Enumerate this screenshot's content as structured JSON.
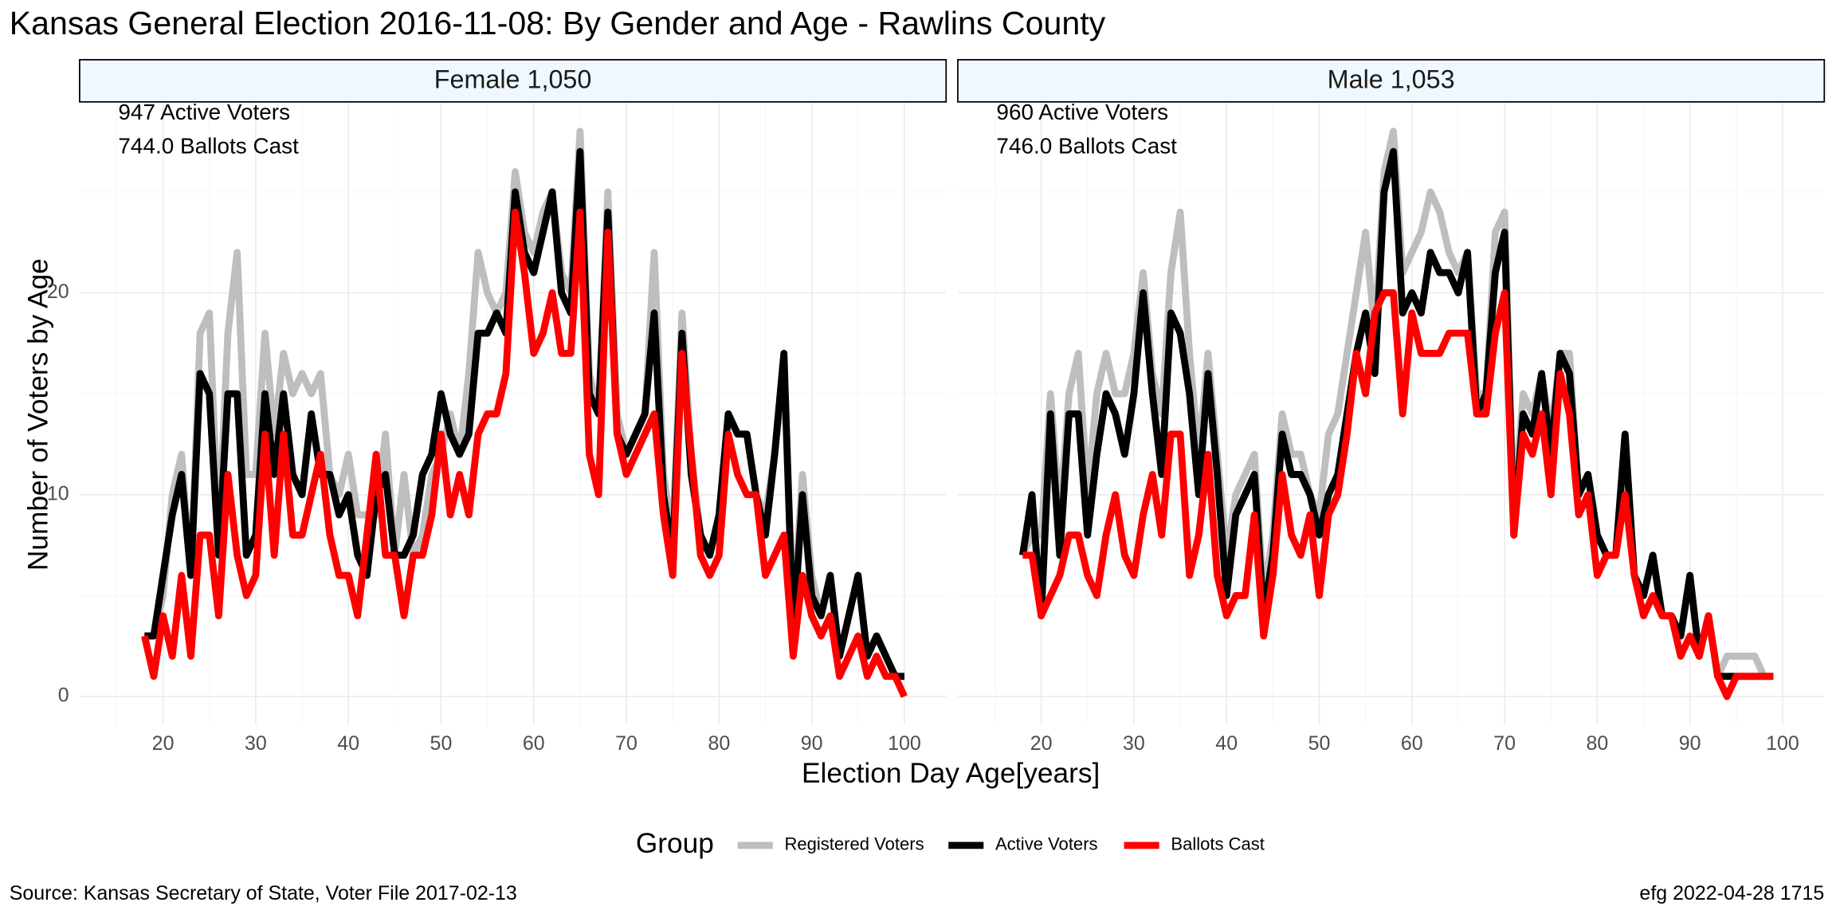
{
  "title": "Kansas General Election 2016-11-08:  By Gender and Age - Rawlins County",
  "x_label": "Election Day Age[years]",
  "y_label": "Number of Voters by Age",
  "legend_title": "Group",
  "source": "Source:  Kansas Secretary of State, Voter File  2017-02-13",
  "credit": "efg 2022-04-28 1715",
  "chart_data": [
    {
      "type": "line",
      "title": "Female 1,050",
      "annotations": [
        "947 Active Voters",
        "744.0 Ballots Cast"
      ],
      "x": [
        18,
        19,
        20,
        21,
        22,
        23,
        24,
        25,
        26,
        27,
        28,
        29,
        30,
        31,
        32,
        33,
        34,
        35,
        36,
        37,
        38,
        39,
        40,
        41,
        42,
        43,
        44,
        45,
        46,
        47,
        48,
        49,
        50,
        51,
        52,
        53,
        54,
        55,
        56,
        57,
        58,
        59,
        60,
        61,
        62,
        63,
        64,
        65,
        66,
        67,
        68,
        69,
        70,
        71,
        72,
        73,
        74,
        75,
        76,
        77,
        78,
        79,
        80,
        81,
        82,
        83,
        84,
        85,
        86,
        87,
        88,
        89,
        90,
        91,
        92,
        93,
        94,
        95,
        96,
        97,
        98,
        99,
        100
      ],
      "series": [
        {
          "name": "Registered Voters",
          "color": "#bebebe",
          "values": [
            3,
            3,
            5,
            10,
            12,
            6,
            18,
            19,
            8,
            18,
            22,
            11,
            11,
            18,
            13,
            17,
            15,
            16,
            15,
            16,
            11,
            10,
            12,
            9,
            9,
            9,
            13,
            7,
            11,
            7,
            8,
            11,
            12,
            14,
            12,
            16,
            22,
            20,
            19,
            20,
            26,
            23,
            22,
            24,
            25,
            21,
            20,
            28,
            16,
            14,
            25,
            14,
            12,
            13,
            14,
            22,
            11,
            8,
            19,
            12,
            8,
            7,
            9,
            14,
            13,
            13,
            10,
            9,
            12,
            16,
            4,
            11,
            6,
            4,
            6,
            2,
            4,
            6,
            2,
            3,
            2,
            1,
            1
          ]
        },
        {
          "name": "Active Voters",
          "color": "#000000",
          "values": [
            3,
            3,
            6,
            9,
            11,
            6,
            16,
            15,
            7,
            15,
            15,
            7,
            8,
            15,
            11,
            15,
            11,
            10,
            14,
            11,
            11,
            9,
            10,
            7,
            6,
            10,
            11,
            7,
            7,
            8,
            11,
            12,
            15,
            13,
            12,
            13,
            18,
            18,
            19,
            18,
            25,
            22,
            21,
            23,
            25,
            20,
            19,
            27,
            15,
            14,
            24,
            13,
            12,
            13,
            14,
            19,
            10,
            7,
            18,
            11,
            8,
            7,
            9,
            14,
            13,
            13,
            10,
            8,
            12,
            17,
            3,
            10,
            5,
            4,
            6,
            2,
            4,
            6,
            2,
            3,
            2,
            1,
            1
          ]
        },
        {
          "name": "Ballots Cast",
          "color": "#ff0000",
          "values": [
            3,
            1,
            4,
            2,
            6,
            2,
            8,
            8,
            4,
            11,
            7,
            5,
            6,
            13,
            7,
            13,
            8,
            8,
            10,
            12,
            8,
            6,
            6,
            4,
            8,
            12,
            7,
            7,
            4,
            7,
            7,
            9,
            13,
            9,
            11,
            9,
            13,
            14,
            14,
            16,
            24,
            21,
            17,
            18,
            20,
            17,
            17,
            24,
            12,
            10,
            23,
            13,
            11,
            12,
            13,
            14,
            9,
            6,
            17,
            12,
            7,
            6,
            7,
            13,
            11,
            10,
            10,
            6,
            7,
            8,
            2,
            6,
            4,
            3,
            4,
            1,
            2,
            3,
            1,
            2,
            1,
            1,
            0
          ]
        }
      ],
      "xlim": [
        11,
        104.5
      ],
      "ylim": [
        -1.4,
        29.4
      ],
      "xticks": [
        20,
        30,
        40,
        50,
        60,
        70,
        80,
        90,
        100
      ],
      "yticks": [
        0,
        10,
        20
      ],
      "grid": true
    },
    {
      "type": "line",
      "title": "Male 1,053",
      "annotations": [
        "960 Active Voters",
        "746.0 Ballots Cast"
      ],
      "x": [
        18,
        19,
        20,
        21,
        22,
        23,
        24,
        25,
        26,
        27,
        28,
        29,
        30,
        31,
        32,
        33,
        34,
        35,
        36,
        37,
        38,
        39,
        40,
        41,
        42,
        43,
        44,
        45,
        46,
        47,
        48,
        49,
        50,
        51,
        52,
        53,
        54,
        55,
        56,
        57,
        58,
        59,
        60,
        61,
        62,
        63,
        64,
        65,
        66,
        67,
        68,
        69,
        70,
        71,
        72,
        73,
        74,
        75,
        76,
        77,
        78,
        79,
        80,
        81,
        82,
        83,
        84,
        85,
        86,
        87,
        88,
        89,
        90,
        91,
        92,
        93,
        94,
        95,
        96,
        97,
        98,
        99
      ],
      "series": [
        {
          "name": "Registered Voters",
          "color": "#bebebe",
          "values": [
            7,
            8,
            8,
            15,
            9,
            15,
            17,
            10,
            15,
            17,
            15,
            15,
            17,
            21,
            16,
            14,
            21,
            24,
            17,
            12,
            17,
            12,
            7,
            10,
            11,
            12,
            5,
            8,
            14,
            12,
            12,
            10,
            9,
            13,
            14,
            17,
            20,
            23,
            18,
            26,
            28,
            21,
            22,
            23,
            25,
            24,
            22,
            21,
            22,
            15,
            15,
            23,
            24,
            9,
            15,
            14,
            16,
            13,
            17,
            17,
            10,
            11,
            8,
            7,
            7,
            13,
            6,
            5,
            7,
            4,
            4,
            3,
            6,
            2,
            4,
            1,
            2,
            2,
            2,
            2,
            1,
            1
          ]
        },
        {
          "name": "Active Voters",
          "color": "#000000",
          "values": [
            7,
            10,
            4,
            14,
            7,
            14,
            14,
            8,
            12,
            15,
            14,
            12,
            15,
            20,
            15,
            11,
            19,
            18,
            15,
            10,
            16,
            11,
            5,
            9,
            10,
            11,
            4,
            7,
            13,
            11,
            11,
            10,
            8,
            10,
            11,
            14,
            17,
            19,
            16,
            25,
            27,
            19,
            20,
            19,
            22,
            21,
            21,
            20,
            22,
            14,
            15,
            21,
            23,
            8,
            14,
            13,
            16,
            12,
            17,
            16,
            10,
            11,
            8,
            7,
            7,
            13,
            6,
            5,
            7,
            4,
            4,
            3,
            6,
            2,
            4,
            1,
            1,
            1,
            1,
            1,
            1,
            1
          ]
        },
        {
          "name": "Ballots Cast",
          "color": "#ff0000",
          "values": [
            7,
            7,
            4,
            5,
            6,
            8,
            8,
            6,
            5,
            8,
            10,
            7,
            6,
            9,
            11,
            8,
            13,
            13,
            6,
            8,
            12,
            6,
            4,
            5,
            5,
            9,
            3,
            6,
            11,
            8,
            7,
            9,
            5,
            9,
            10,
            13,
            17,
            15,
            19,
            20,
            20,
            14,
            19,
            17,
            17,
            17,
            18,
            18,
            18,
            14,
            14,
            18,
            20,
            8,
            13,
            12,
            14,
            10,
            16,
            14,
            9,
            10,
            6,
            7,
            7,
            10,
            6,
            4,
            5,
            4,
            4,
            2,
            3,
            2,
            4,
            1,
            0,
            1,
            1,
            1,
            1,
            1
          ]
        }
      ],
      "xlim": [
        11,
        104.5
      ],
      "ylim": [
        -1.4,
        29.4
      ],
      "xticks": [
        20,
        30,
        40,
        50,
        60,
        70,
        80,
        90,
        100
      ],
      "yticks": [
        0,
        10,
        20
      ],
      "grid": true
    }
  ]
}
